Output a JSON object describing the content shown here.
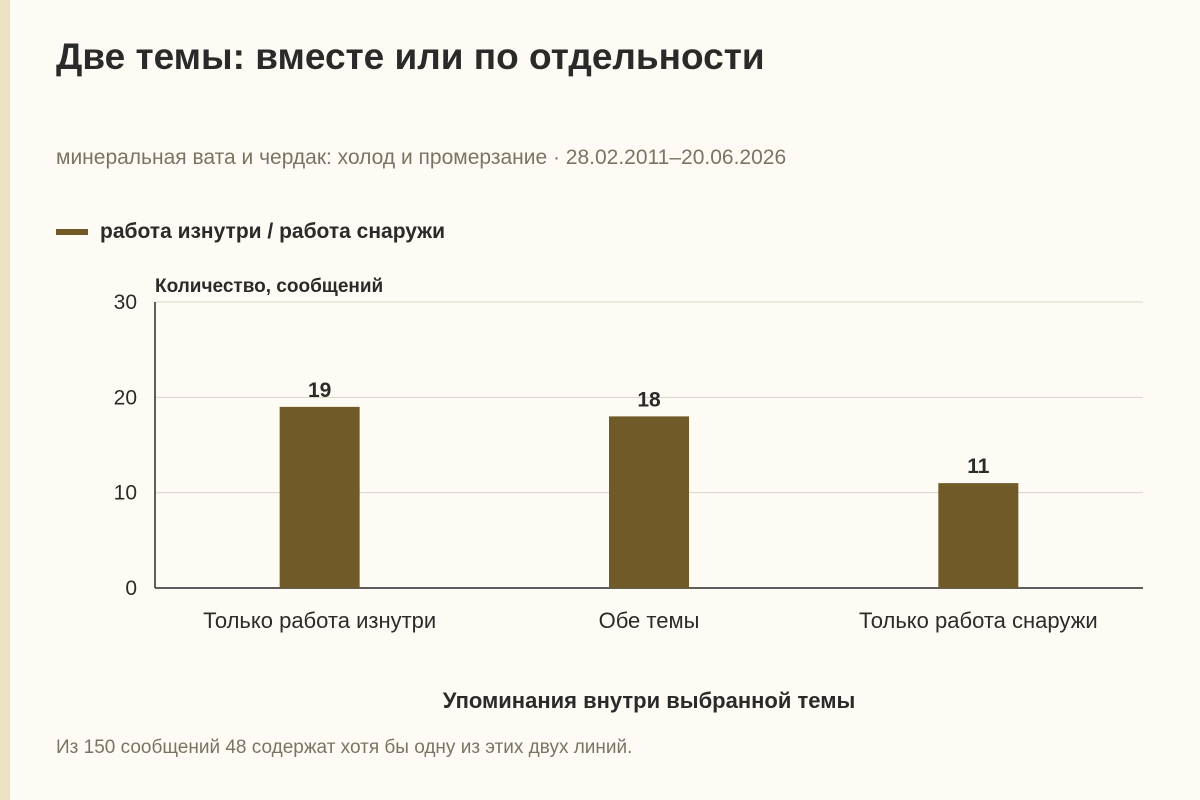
{
  "title": "Две темы: вместе или по отдельности",
  "subtitle": "минеральная вата и чердак: холод и промерзание · 28.02.2011–20.06.2026",
  "footnote": "Из 150 сообщений 48 содержат хотя бы одну из этих двух линий.",
  "colors": {
    "bar": "#6f5a28",
    "grid": "#d9d4c4",
    "axis": "#2b2b2b",
    "accent_strip": "#ece1c1"
  },
  "chart_data": {
    "type": "bar",
    "categories": [
      "Только работа изнутри",
      "Обе темы",
      "Только работа снаружи"
    ],
    "series": [
      {
        "name": "работа изнутри / работа снаружи",
        "values": [
          19,
          18,
          11
        ]
      }
    ],
    "xlabel": "Упоминания внутри выбранной темы",
    "ylabel": "Количество, сообщений",
    "ylim": [
      0,
      30
    ],
    "yticks": [
      0,
      10,
      20,
      30
    ],
    "grid": true,
    "legend_position": "top-left",
    "data_labels": true
  }
}
